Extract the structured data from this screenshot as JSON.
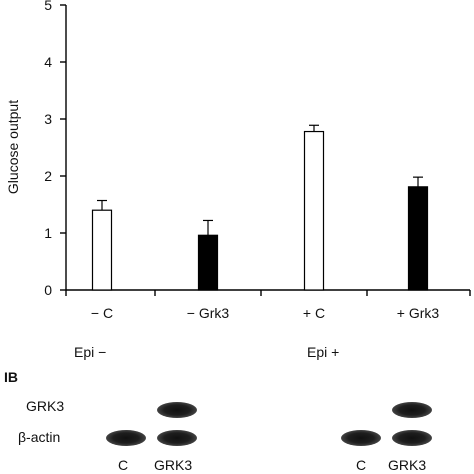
{
  "chart_data": {
    "type": "bar",
    "ylabel": "Glucose output",
    "ylim": [
      0,
      5
    ],
    "yticks": [
      0,
      1,
      2,
      3,
      4,
      5
    ],
    "categories": [
      "− C",
      "− Grk3",
      "+ C",
      "+ Grk3"
    ],
    "values": [
      1.4,
      0.96,
      2.78,
      1.81
    ],
    "errors": [
      0.17,
      0.26,
      0.11,
      0.17
    ],
    "bar_colors": [
      "#ffffff",
      "#000000",
      "#ffffff",
      "#000000"
    ],
    "grid": false,
    "legend": "none"
  },
  "conditions": {
    "epi_minus": "Epi −",
    "epi_plus": "Epi +"
  },
  "blot": {
    "section_label": "IB",
    "row_labels": [
      "GRK3",
      "β-actin"
    ],
    "lane_labels": [
      "C",
      "GRK3",
      "C",
      "GRK3"
    ],
    "bands": {
      "grk3": [
        false,
        true,
        false,
        true
      ],
      "beta_actin": [
        true,
        true,
        true,
        true
      ]
    }
  }
}
